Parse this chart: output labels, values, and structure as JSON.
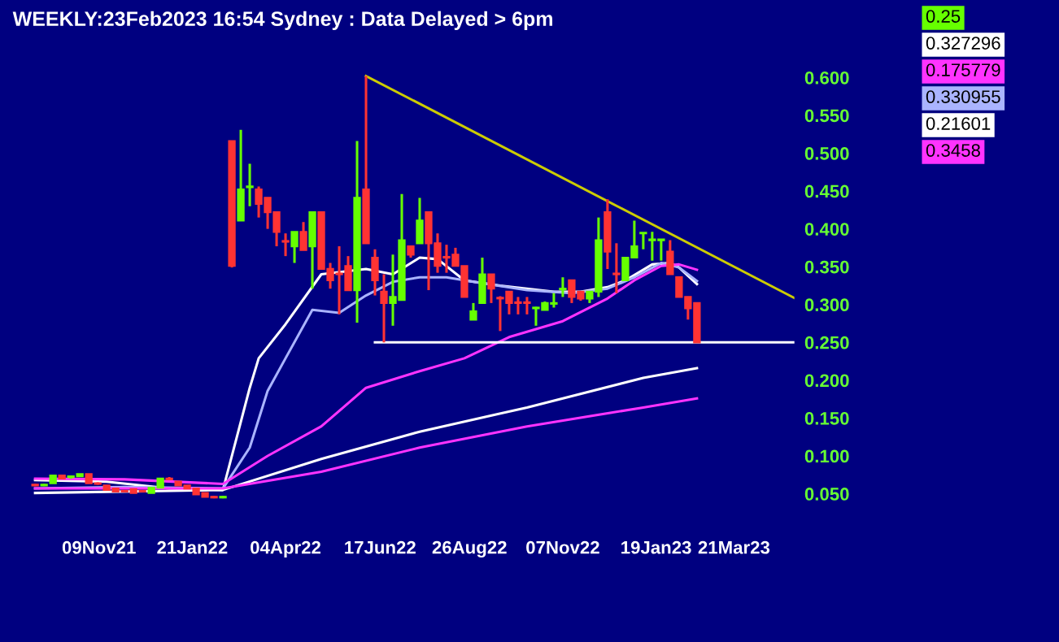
{
  "chart_data": {
    "type": "candlestick",
    "title": "WEEKLY:23Feb2023 16:54 Sydney : Data Delayed > 6pm",
    "x": [
      "2021-09-20",
      "2021-09-27",
      "2021-10-04",
      "2021-10-11",
      "2021-10-18",
      "2021-10-25",
      "2021-11-01",
      "2021-11-08",
      "2021-11-15",
      "2021-11-22",
      "2021-11-29",
      "2021-12-06",
      "2021-12-13",
      "2021-12-20",
      "2021-12-27",
      "2022-01-03",
      "2022-01-10",
      "2022-01-17",
      "2022-01-24",
      "2022-01-31",
      "2022-02-07",
      "2022-02-14",
      "2022-02-21",
      "2022-02-28",
      "2022-03-07",
      "2022-03-14",
      "2022-03-21",
      "2022-03-28",
      "2022-04-04",
      "2022-04-11",
      "2022-04-18",
      "2022-04-25",
      "2022-05-02",
      "2022-05-09",
      "2022-05-16",
      "2022-05-23",
      "2022-05-30",
      "2022-06-06",
      "2022-06-13",
      "2022-06-20",
      "2022-06-27",
      "2022-07-04",
      "2022-07-11",
      "2022-07-18",
      "2022-07-25",
      "2022-08-01",
      "2022-08-08",
      "2022-08-15",
      "2022-08-22",
      "2022-08-29",
      "2022-09-05",
      "2022-09-12",
      "2022-09-19",
      "2022-09-26",
      "2022-10-03",
      "2022-10-10",
      "2022-10-17",
      "2022-10-24",
      "2022-10-31",
      "2022-11-07",
      "2022-11-14",
      "2022-11-21",
      "2022-11-28",
      "2022-12-05",
      "2022-12-12",
      "2022-12-19",
      "2022-12-26",
      "2023-01-02",
      "2023-01-09",
      "2023-01-16",
      "2023-01-23",
      "2023-01-30",
      "2023-02-06",
      "2023-02-13",
      "2023-02-20"
    ],
    "ohlc": [
      [
        0.062,
        0.063,
        0.06,
        0.061
      ],
      [
        0.061,
        0.063,
        0.06,
        0.062
      ],
      [
        0.064,
        0.074,
        0.064,
        0.074
      ],
      [
        0.074,
        0.074,
        0.07,
        0.07
      ],
      [
        0.072,
        0.074,
        0.07,
        0.073
      ],
      [
        0.073,
        0.076,
        0.073,
        0.076
      ],
      [
        0.076,
        0.076,
        0.064,
        0.064
      ],
      [
        0.064,
        0.065,
        0.062,
        0.063
      ],
      [
        0.061,
        0.061,
        0.055,
        0.055
      ],
      [
        0.057,
        0.057,
        0.053,
        0.053
      ],
      [
        0.054,
        0.055,
        0.052,
        0.053
      ],
      [
        0.056,
        0.056,
        0.051,
        0.051
      ],
      [
        0.054,
        0.055,
        0.052,
        0.053
      ],
      [
        0.051,
        0.058,
        0.051,
        0.058
      ],
      [
        0.058,
        0.07,
        0.058,
        0.07
      ],
      [
        0.07,
        0.072,
        0.068,
        0.069
      ],
      [
        0.066,
        0.066,
        0.061,
        0.061
      ],
      [
        0.061,
        0.061,
        0.057,
        0.057
      ],
      [
        0.057,
        0.057,
        0.049,
        0.049
      ],
      [
        0.051,
        0.051,
        0.046,
        0.046
      ],
      [
        0.046,
        0.047,
        0.044,
        0.045
      ],
      [
        0.045,
        0.047,
        0.044,
        0.046
      ],
      [
        0.516,
        0.516,
        0.349,
        0.351
      ],
      [
        0.411,
        0.531,
        0.411,
        0.452
      ],
      [
        0.455,
        0.486,
        0.43,
        0.456
      ],
      [
        0.452,
        0.456,
        0.415,
        0.433
      ],
      [
        0.441,
        0.441,
        0.4,
        0.422
      ],
      [
        0.422,
        0.422,
        0.377,
        0.396
      ],
      [
        0.384,
        0.394,
        0.364,
        0.383
      ],
      [
        0.377,
        0.396,
        0.355,
        0.396
      ],
      [
        0.396,
        0.409,
        0.372,
        0.372
      ],
      [
        0.377,
        0.422,
        0.321,
        0.422
      ],
      [
        0.422,
        0.422,
        0.347,
        0.347
      ],
      [
        0.347,
        0.355,
        0.321,
        0.332
      ],
      [
        0.341,
        0.377,
        0.287,
        0.34
      ],
      [
        0.351,
        0.364,
        0.319,
        0.319
      ],
      [
        0.319,
        0.516,
        0.276,
        0.441
      ],
      [
        0.452,
        0.602,
        0.381,
        0.381
      ],
      [
        0.362,
        0.373,
        0.312,
        0.332
      ],
      [
        0.317,
        0.34,
        0.25,
        0.302
      ],
      [
        0.302,
        0.366,
        0.272,
        0.31
      ],
      [
        0.306,
        0.446,
        0.306,
        0.385
      ],
      [
        0.377,
        0.377,
        0.362,
        0.366
      ],
      [
        0.381,
        0.441,
        0.381,
        0.411
      ],
      [
        0.422,
        0.422,
        0.319,
        0.381
      ],
      [
        0.381,
        0.394,
        0.342,
        0.351
      ],
      [
        0.363,
        0.379,
        0.342,
        0.362
      ],
      [
        0.366,
        0.375,
        0.351,
        0.351
      ],
      [
        0.351,
        0.351,
        0.31,
        0.31
      ],
      [
        0.28,
        0.302,
        0.28,
        0.291
      ],
      [
        0.302,
        0.362,
        0.302,
        0.34
      ],
      [
        0.34,
        0.34,
        0.302,
        0.321
      ],
      [
        0.309,
        0.311,
        0.265,
        0.308
      ],
      [
        0.317,
        0.317,
        0.287,
        0.302
      ],
      [
        0.303,
        0.31,
        0.287,
        0.302
      ],
      [
        0.303,
        0.31,
        0.287,
        0.302
      ],
      [
        0.295,
        0.297,
        0.272,
        0.296
      ],
      [
        0.293,
        0.304,
        0.293,
        0.302
      ],
      [
        0.301,
        0.315,
        0.296,
        0.302
      ],
      [
        0.32,
        0.336,
        0.31,
        0.321
      ],
      [
        0.332,
        0.332,
        0.302,
        0.31
      ],
      [
        0.317,
        0.317,
        0.305,
        0.308
      ],
      [
        0.308,
        0.317,
        0.302,
        0.317
      ],
      [
        0.317,
        0.415,
        0.31,
        0.385
      ],
      [
        0.422,
        0.439,
        0.347,
        0.37
      ],
      [
        0.341,
        0.381,
        0.315,
        0.34
      ],
      [
        0.332,
        0.362,
        0.332,
        0.362
      ],
      [
        0.362,
        0.411,
        0.362,
        0.377
      ],
      [
        0.394,
        0.395,
        0.373,
        0.395
      ],
      [
        0.385,
        0.396,
        0.358,
        0.386
      ],
      [
        0.385,
        0.386,
        0.358,
        0.386
      ],
      [
        0.37,
        0.385,
        0.34,
        0.34
      ],
      [
        0.336,
        0.336,
        0.31,
        0.31
      ],
      [
        0.31,
        0.31,
        0.28,
        0.295
      ],
      [
        0.302,
        0.302,
        0.25,
        0.25
      ]
    ],
    "colors": [
      "#ff3333",
      "#66ff00",
      "#66ff00",
      "#ff3333",
      "#66ff00",
      "#66ff00",
      "#ff3333",
      "#ff3333",
      "#ff3333",
      "#ff3333",
      "#ff3333",
      "#ff3333",
      "#ff3333",
      "#66ff00",
      "#66ff00",
      "#ff3333",
      "#ff3333",
      "#ff3333",
      "#ff3333",
      "#ff3333",
      "#ff3333",
      "#66ff00",
      "#ff3333",
      "#66ff00",
      "#66ff00",
      "#ff3333",
      "#ff3333",
      "#ff3333",
      "#ff3333",
      "#66ff00",
      "#ff3333",
      "#66ff00",
      "#ff3333",
      "#ff3333",
      "#ff3333",
      "#ff3333",
      "#66ff00",
      "#ff3333",
      "#ff3333",
      "#ff3333",
      "#66ff00",
      "#66ff00",
      "#ff3333",
      "#66ff00",
      "#ff3333",
      "#ff3333",
      "#ff3333",
      "#ff3333",
      "#ff3333",
      "#66ff00",
      "#66ff00",
      "#ff3333",
      "#ff3333",
      "#ff3333",
      "#ff3333",
      "#ff3333",
      "#66ff00",
      "#66ff00",
      "#66ff00",
      "#66ff00",
      "#ff3333",
      "#ff3333",
      "#66ff00",
      "#66ff00",
      "#ff3333",
      "#ff3333",
      "#66ff00",
      "#66ff00",
      "#66ff00",
      "#66ff00",
      "#66ff00",
      "#ff3333",
      "#ff3333",
      "#ff3333",
      "#ff3333"
    ],
    "series": [
      {
        "type": "line",
        "color": "#ffffff",
        "x": [
          "2021-09-20",
          "2021-11-15",
          "2022-01-03",
          "2022-02-14",
          "2022-03-07",
          "2022-03-14",
          "2022-04-04",
          "2022-05-02",
          "2022-06-06",
          "2022-06-27",
          "2022-07-18",
          "2022-08-01",
          "2022-08-22",
          "2022-09-19",
          "2022-10-10",
          "2022-10-31",
          "2022-11-21",
          "2022-12-12",
          "2022-12-26",
          "2023-01-16",
          "2023-01-30",
          "2023-02-06",
          "2023-02-13",
          "2023-02-20"
        ],
        "values": [
          0.068,
          0.066,
          0.057,
          0.055,
          0.19,
          0.229,
          0.274,
          0.34,
          0.347,
          0.34,
          0.362,
          0.36,
          0.332,
          0.325,
          0.321,
          0.317,
          0.317,
          0.323,
          0.332,
          0.353,
          0.355,
          0.349,
          0.338,
          0.327
        ]
      },
      {
        "type": "line",
        "color": "#aab4ff",
        "x": [
          "2021-09-20",
          "2021-11-29",
          "2022-02-14",
          "2022-03-07",
          "2022-03-21",
          "2022-04-04",
          "2022-04-25",
          "2022-05-16",
          "2022-06-06",
          "2022-06-27",
          "2022-07-18",
          "2022-08-08",
          "2022-08-29",
          "2022-10-10",
          "2022-11-14",
          "2022-12-12",
          "2023-01-02",
          "2023-01-23",
          "2023-02-06",
          "2023-02-20"
        ],
        "values": [
          0.057,
          0.059,
          0.057,
          0.111,
          0.186,
          0.229,
          0.293,
          0.289,
          0.312,
          0.33,
          0.336,
          0.336,
          0.33,
          0.319,
          0.315,
          0.321,
          0.336,
          0.355,
          0.349,
          0.331
        ]
      },
      {
        "type": "line",
        "color": "#ff33ff",
        "x": [
          "2021-09-20",
          "2021-11-29",
          "2022-02-14",
          "2022-03-21",
          "2022-05-02",
          "2022-06-06",
          "2022-07-18",
          "2022-08-22",
          "2022-09-26",
          "2022-11-07",
          "2022-12-12",
          "2023-01-02",
          "2023-01-23",
          "2023-02-06",
          "2023-02-20"
        ],
        "values": [
          0.07,
          0.069,
          0.063,
          0.1,
          0.139,
          0.19,
          0.212,
          0.229,
          0.257,
          0.278,
          0.308,
          0.332,
          0.351,
          0.353,
          0.346
        ]
      },
      {
        "type": "line",
        "color": "#ffffff",
        "x": [
          "2021-09-20",
          "2022-02-14",
          "2022-05-02",
          "2022-07-18",
          "2022-10-10",
          "2023-01-09",
          "2023-02-20"
        ],
        "values": [
          0.051,
          0.055,
          0.096,
          0.132,
          0.164,
          0.203,
          0.216
        ]
      },
      {
        "type": "line",
        "color": "#ff33ff",
        "x": [
          "2021-09-20",
          "2022-02-14",
          "2022-05-02",
          "2022-07-18",
          "2022-10-10",
          "2023-01-09",
          "2023-02-20"
        ],
        "values": [
          0.057,
          0.057,
          0.079,
          0.111,
          0.139,
          0.164,
          0.176
        ]
      },
      {
        "type": "line",
        "color": "#ffffff",
        "x": [
          "2022-06-13",
          "2023-05-08"
        ],
        "values": [
          0.25,
          0.25
        ]
      },
      {
        "type": "line",
        "color": "#cccc00",
        "x": [
          "2022-06-06",
          "2023-05-08"
        ],
        "values": [
          0.602,
          0.308
        ]
      }
    ],
    "xlim": [
      "2021-08-26",
      "2023-05-08"
    ],
    "xticks": [
      {
        "value": "2021-11-09",
        "label": "09Nov21"
      },
      {
        "value": "2022-01-21",
        "label": "21Jan22"
      },
      {
        "value": "2022-04-04",
        "label": "04Apr22"
      },
      {
        "value": "2022-06-17",
        "label": "17Jun22"
      },
      {
        "value": "2022-08-26",
        "label": "26Aug22"
      },
      {
        "value": "2022-11-07",
        "label": "07Nov22"
      },
      {
        "value": "2023-01-19",
        "label": "19Jan23"
      },
      {
        "value": "2023-03-21",
        "label": "21Mar23"
      }
    ],
    "ylim": [
      0,
      0.66
    ],
    "yticks": [
      {
        "value": 0.05,
        "label": "0.050"
      },
      {
        "value": 0.1,
        "label": "0.100"
      },
      {
        "value": 0.15,
        "label": "0.150"
      },
      {
        "value": 0.2,
        "label": "0.200"
      },
      {
        "value": 0.25,
        "label": "0.250"
      },
      {
        "value": 0.3,
        "label": "0.300"
      },
      {
        "value": 0.35,
        "label": "0.350"
      },
      {
        "value": 0.4,
        "label": "0.400"
      },
      {
        "value": 0.45,
        "label": "0.450"
      },
      {
        "value": 0.5,
        "label": "0.500"
      },
      {
        "value": 0.55,
        "label": "0.550"
      },
      {
        "value": 0.6,
        "label": "0.600"
      }
    ],
    "annotations": [
      "0.25",
      "0.327296",
      "0.175779",
      "0.330955",
      "0.21601",
      "0.3458"
    ]
  }
}
